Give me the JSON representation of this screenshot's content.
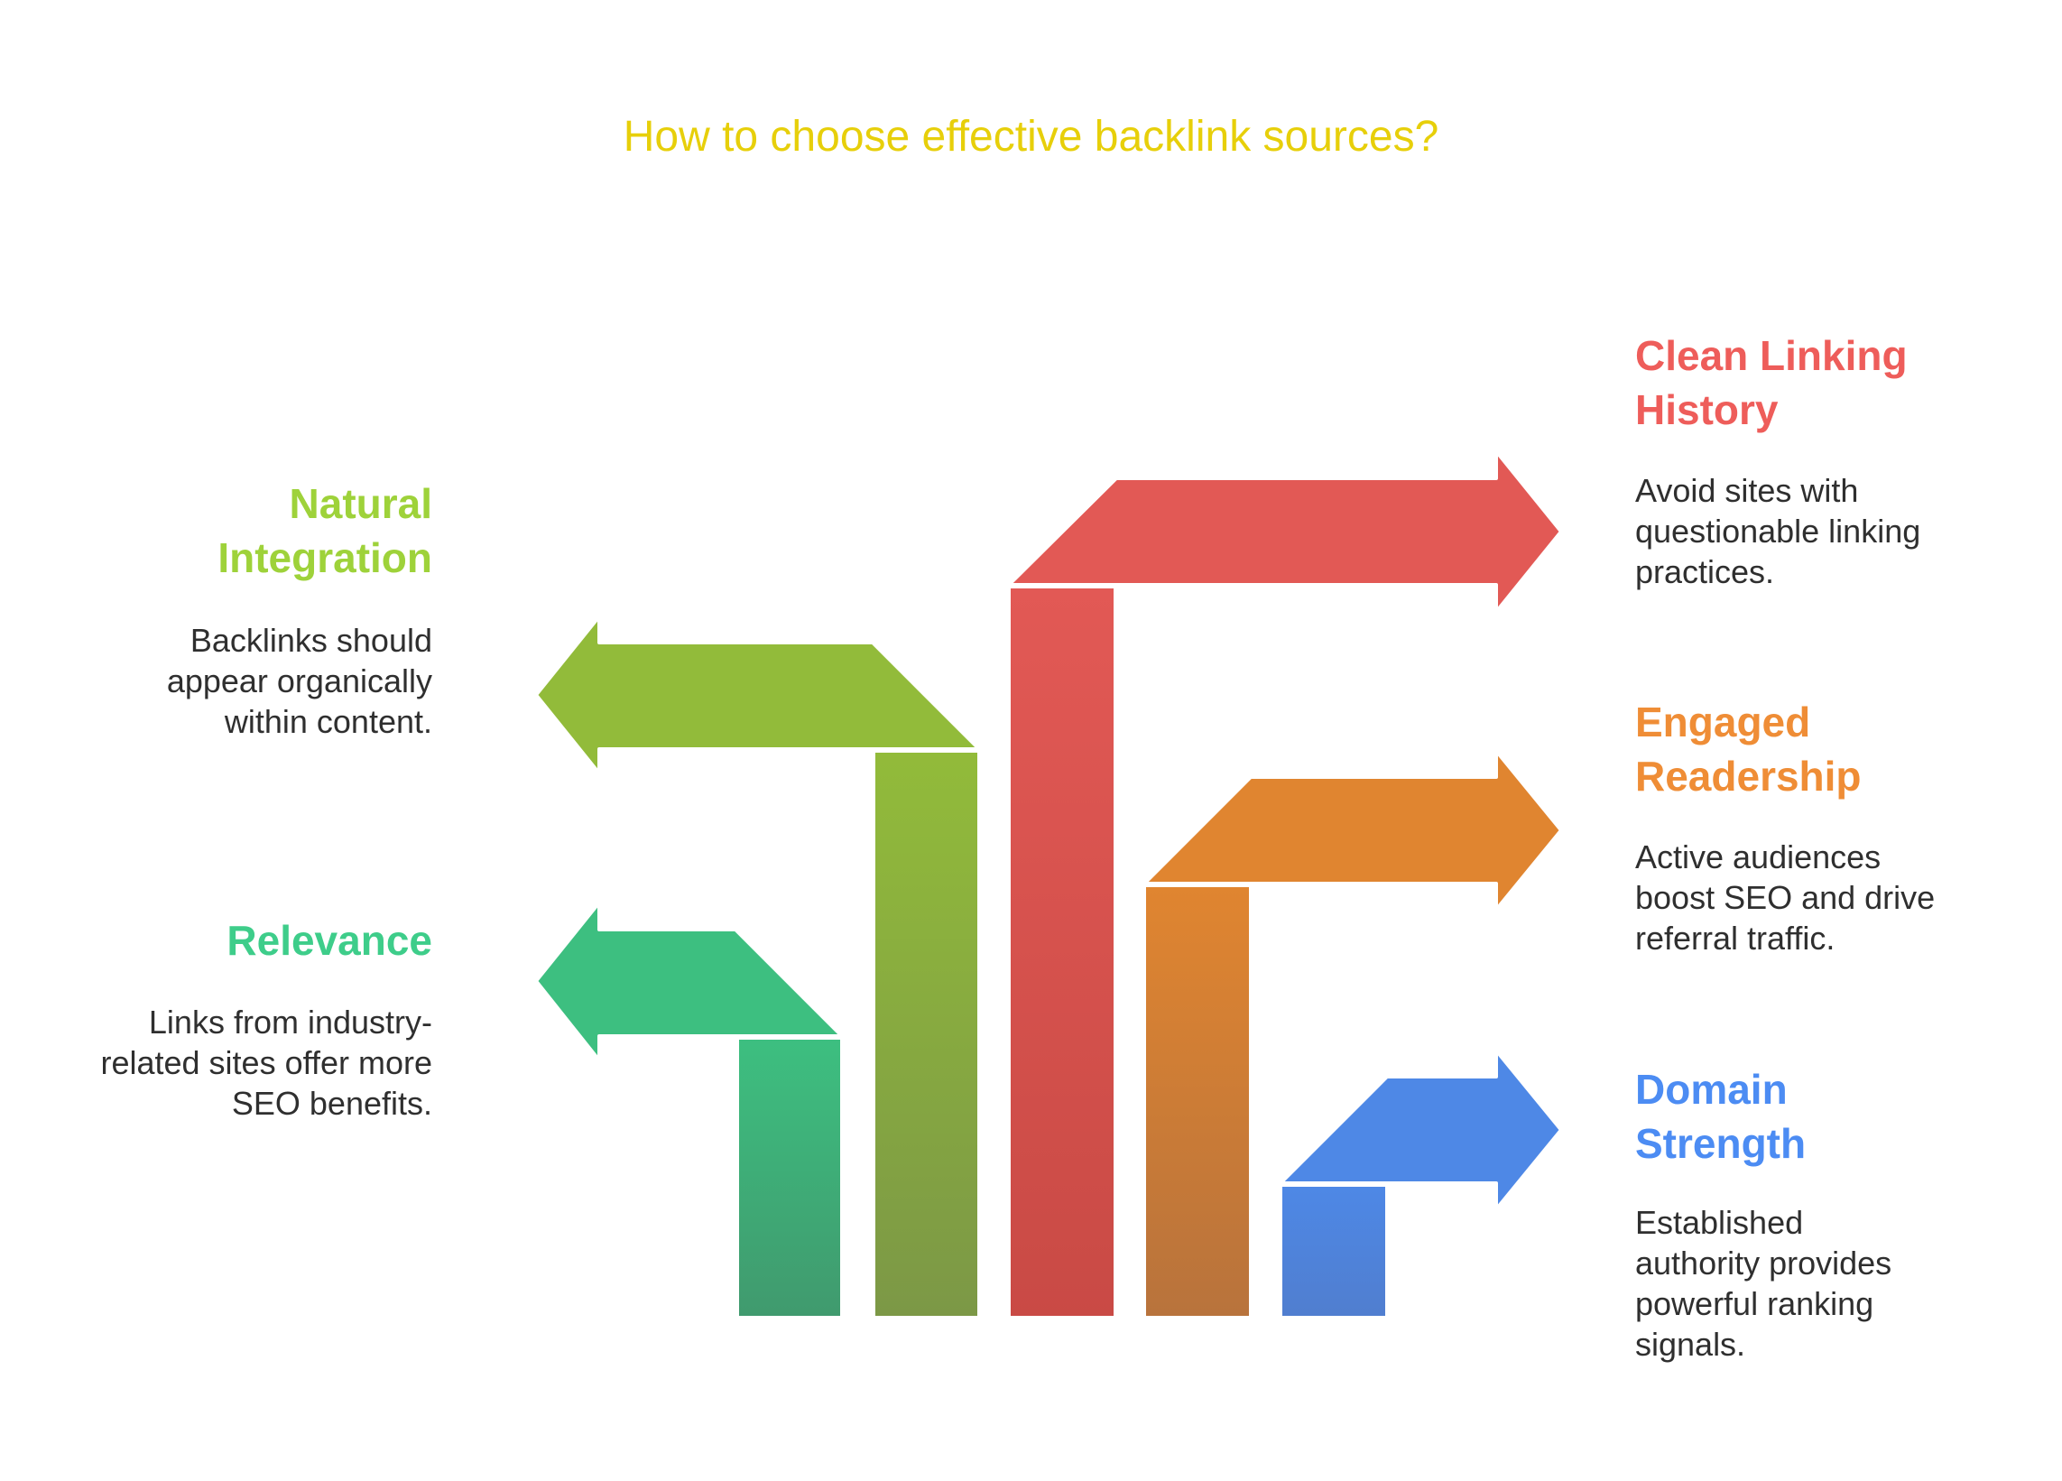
{
  "title": "How to choose effective backlink sources?",
  "items": [
    {
      "key": "relevance",
      "heading": "Relevance",
      "description": "Links from industry-related sites offer more SEO benefits.",
      "side": "left",
      "direction": "left",
      "color": "#3dbf80",
      "color_dark": "#409a6e"
    },
    {
      "key": "natural-integration",
      "heading": "Natural Integration",
      "description": "Backlinks should appear organically within content.",
      "side": "left",
      "direction": "left",
      "color": "#92bb3a",
      "color_dark": "#7c9846"
    },
    {
      "key": "clean-linking-history",
      "heading": "Clean Linking History",
      "description": "Avoid sites with questionable linking practices.",
      "side": "right",
      "direction": "right",
      "color": "#e25955",
      "color_dark": "#c94a45"
    },
    {
      "key": "engaged-readership",
      "heading": "Engaged Readership",
      "description": "Active audiences boost SEO and drive referral traffic.",
      "side": "right",
      "direction": "right",
      "color": "#e08530",
      "color_dark": "#b8733c"
    },
    {
      "key": "domain-strength",
      "heading": "Domain Strength",
      "description": "Established authority provides powerful ranking signals.",
      "side": "right",
      "direction": "right",
      "color": "#4e88e6",
      "color_dark": "#507ecf"
    }
  ],
  "colors": {
    "title": "#e7cf0a",
    "relevance_heading": "#3ecd8a",
    "natural_integration_heading": "#9ed23a",
    "clean_linking_history_heading": "#ee5d5a",
    "engaged_readership_heading": "#ef8d36",
    "domain_strength_heading": "#4c8cf3",
    "description_text": "#2f2f2f"
  }
}
